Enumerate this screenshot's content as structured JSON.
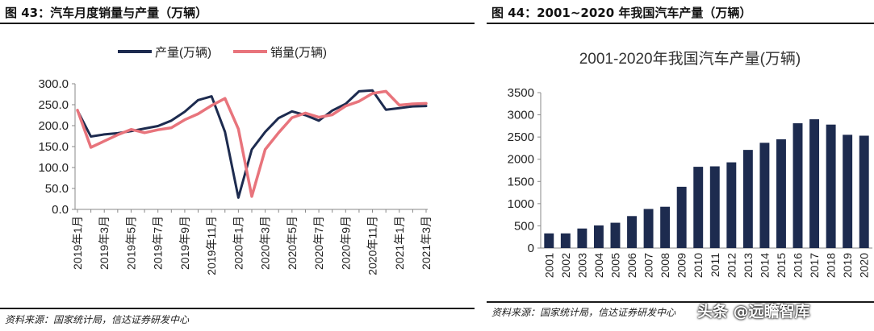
{
  "left": {
    "figure_title": "图 43：汽车月度销量与产量（万辆）",
    "source": "资料来源：国家统计局，信达证券研发中心"
  },
  "right": {
    "figure_title": "图 44：2001~2020 年我国汽车产量（万辆）",
    "source": "资料来源：国家统计局，信达证券研发中心"
  },
  "watermark": "头条 @远瞻智库",
  "chart_data": [
    {
      "type": "line",
      "title": "",
      "xlabel": "",
      "ylabel": "",
      "ylim": [
        0,
        300
      ],
      "yticks": [
        "0.0",
        "50.0",
        "100.0",
        "150.0",
        "200.0",
        "250.0",
        "300.0"
      ],
      "x": [
        "2019年1月",
        "2019年2月",
        "2019年3月",
        "2019年4月",
        "2019年5月",
        "2019年6月",
        "2019年7月",
        "2019年8月",
        "2019年9月",
        "2019年10月",
        "2019年11月",
        "2019年12月",
        "2020年1月",
        "2020年2月",
        "2020年3月",
        "2020年4月",
        "2020年5月",
        "2020年6月",
        "2020年7月",
        "2020年8月",
        "2020年9月",
        "2020年10月",
        "2020年11月",
        "2020年12月",
        "2021年1月",
        "2021年2月",
        "2021年3月"
      ],
      "xtick_labels": [
        "2019年1月",
        "2019年3月",
        "2019年5月",
        "2019年7月",
        "2019年9月",
        "2019年11月",
        "2020年1月",
        "2020年3月",
        "2020年5月",
        "2020年7月",
        "2020年9月",
        "2020年11月",
        "2021年1月",
        "2021年3月"
      ],
      "legend_position": "top",
      "grid": false,
      "series": [
        {
          "name": "产量(万辆)",
          "color": "#1d2b4f",
          "values": [
            236,
            174,
            179,
            182,
            187,
            193,
            199,
            212,
            233,
            261,
            270,
            185,
            28,
            143,
            185,
            218,
            234,
            225,
            212,
            236,
            252,
            282,
            284,
            238,
            242,
            246,
            247
          ]
        },
        {
          "name": "销量(万辆)",
          "color": "#e8747c",
          "values": [
            237,
            148,
            163,
            178,
            191,
            183,
            190,
            195,
            214,
            228,
            248,
            265,
            192,
            31,
            143,
            183,
            219,
            230,
            220,
            226,
            247,
            258,
            277,
            282,
            249,
            252,
            253
          ]
        }
      ]
    },
    {
      "type": "bar",
      "title": "2001-2020年我国汽车产量(万辆)",
      "xlabel": "",
      "ylabel": "",
      "ylim": [
        0,
        3500
      ],
      "yticks": [
        "0",
        "500",
        "1000",
        "1500",
        "2000",
        "2500",
        "3000",
        "3500"
      ],
      "grid": false,
      "bar_color": "#1d2b4f",
      "categories": [
        "2001",
        "2002",
        "2003",
        "2004",
        "2005",
        "2006",
        "2007",
        "2008",
        "2009",
        "2010",
        "2011",
        "2012",
        "2013",
        "2014",
        "2015",
        "2016",
        "2017",
        "2018",
        "2019",
        "2020"
      ],
      "values": [
        330,
        330,
        440,
        510,
        570,
        720,
        880,
        930,
        1380,
        1830,
        1840,
        1930,
        2210,
        2370,
        2450,
        2810,
        2900,
        2780,
        2550,
        2530
      ]
    }
  ]
}
